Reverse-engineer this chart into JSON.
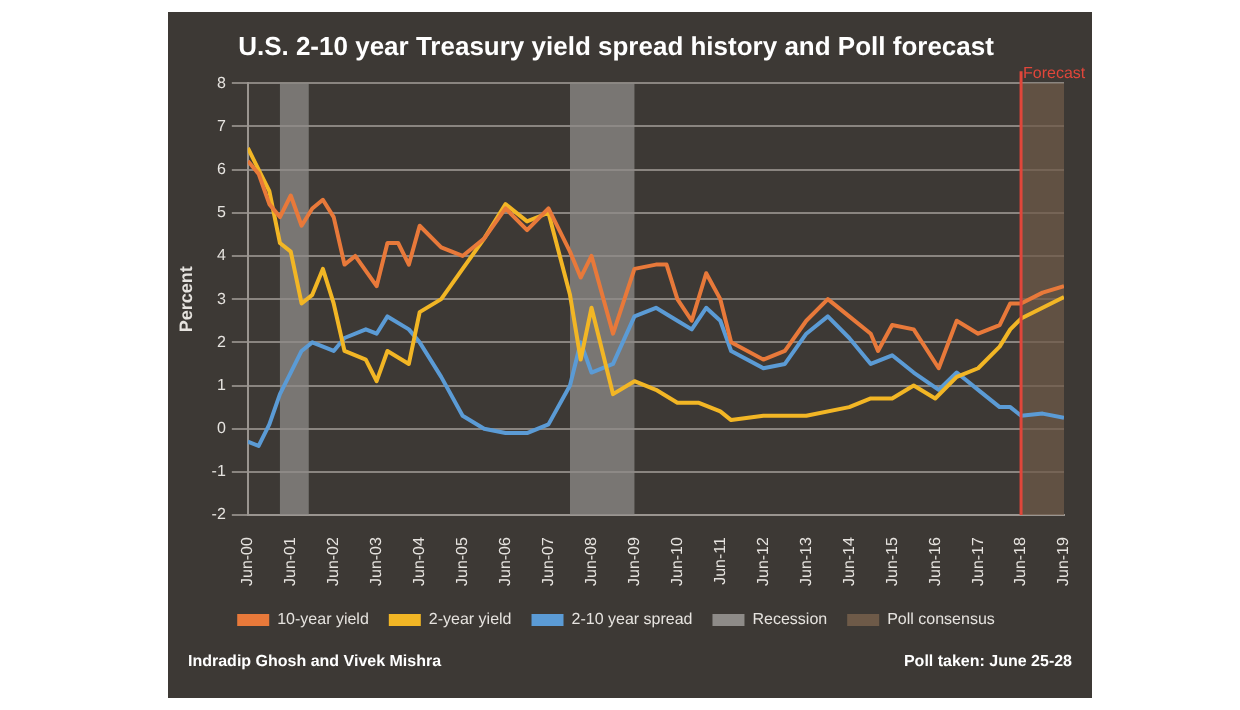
{
  "chart_data": {
    "type": "line",
    "title": "U.S. 2-10 year Treasury yield spread history and Poll forecast",
    "ylabel": "Percent",
    "xlim": [
      "2000-06",
      "2019-06"
    ],
    "xticks": [
      {
        "value": "2000-06",
        "label": "Jun-00"
      },
      {
        "value": "2001-06",
        "label": "Jun-01"
      },
      {
        "value": "2002-06",
        "label": "Jun-02"
      },
      {
        "value": "2003-06",
        "label": "Jun-03"
      },
      {
        "value": "2004-06",
        "label": "Jun-04"
      },
      {
        "value": "2005-06",
        "label": "Jun-05"
      },
      {
        "value": "2006-06",
        "label": "Jun-06"
      },
      {
        "value": "2007-06",
        "label": "Jun-07"
      },
      {
        "value": "2008-06",
        "label": "Jun-08"
      },
      {
        "value": "2009-06",
        "label": "Jun-09"
      },
      {
        "value": "2010-06",
        "label": "Jun-10"
      },
      {
        "value": "2011-06",
        "label": "Jun-11"
      },
      {
        "value": "2012-06",
        "label": "Jun-12"
      },
      {
        "value": "2013-06",
        "label": "Jun-13"
      },
      {
        "value": "2014-06",
        "label": "Jun-14"
      },
      {
        "value": "2015-06",
        "label": "Jun-15"
      },
      {
        "value": "2016-06",
        "label": "Jun-16"
      },
      {
        "value": "2017-06",
        "label": "Jun-17"
      },
      {
        "value": "2018-06",
        "label": "Jun-18"
      },
      {
        "value": "2019-06",
        "label": "Jun-19"
      }
    ],
    "ylim": [
      -2,
      8
    ],
    "yticks": [
      -2,
      -1,
      0,
      1,
      2,
      3,
      4,
      5,
      6,
      7,
      8
    ],
    "grid": "y",
    "legend": "bottom",
    "series": [
      {
        "name": "10-year yield",
        "color": "#e8793a",
        "x": [
          "2000-06",
          "2000-09",
          "2000-12",
          "2001-03",
          "2001-06",
          "2001-09",
          "2001-12",
          "2002-03",
          "2002-06",
          "2002-09",
          "2002-12",
          "2003-06",
          "2003-09",
          "2003-12",
          "2004-03",
          "2004-06",
          "2004-12",
          "2005-06",
          "2005-12",
          "2006-06",
          "2006-12",
          "2007-06",
          "2007-12",
          "2008-03",
          "2008-06",
          "2008-12",
          "2009-06",
          "2009-12",
          "2010-03",
          "2010-06",
          "2010-10",
          "2011-02",
          "2011-06",
          "2011-09",
          "2012-06",
          "2012-12",
          "2013-06",
          "2013-12",
          "2014-06",
          "2014-12",
          "2015-02",
          "2015-06",
          "2015-12",
          "2016-07",
          "2016-12",
          "2017-06",
          "2017-12",
          "2018-03",
          "2018-06",
          "2018-12",
          "2019-06"
        ],
        "values": [
          6.2,
          5.9,
          5.2,
          4.9,
          5.4,
          4.7,
          5.1,
          5.3,
          4.9,
          3.8,
          4.0,
          3.3,
          4.3,
          4.3,
          3.8,
          4.7,
          4.2,
          4.0,
          4.4,
          5.1,
          4.6,
          5.1,
          4.1,
          3.5,
          4.0,
          2.2,
          3.7,
          3.8,
          3.8,
          3.0,
          2.5,
          3.6,
          3.0,
          2.0,
          1.6,
          1.8,
          2.5,
          3.0,
          2.6,
          2.2,
          1.8,
          2.4,
          2.3,
          1.4,
          2.5,
          2.2,
          2.4,
          2.9,
          2.9,
          3.15,
          3.3
        ]
      },
      {
        "name": "2-year yield",
        "color": "#f2b625",
        "x": [
          "2000-06",
          "2000-12",
          "2001-03",
          "2001-06",
          "2001-09",
          "2001-12",
          "2002-03",
          "2002-06",
          "2002-09",
          "2003-03",
          "2003-06",
          "2003-09",
          "2004-03",
          "2004-06",
          "2004-12",
          "2005-06",
          "2005-12",
          "2006-06",
          "2006-12",
          "2007-06",
          "2007-12",
          "2008-03",
          "2008-06",
          "2008-12",
          "2009-06",
          "2009-12",
          "2010-06",
          "2010-12",
          "2011-06",
          "2011-09",
          "2012-06",
          "2013-06",
          "2014-06",
          "2014-12",
          "2015-06",
          "2015-12",
          "2016-06",
          "2016-12",
          "2017-06",
          "2017-12",
          "2018-03",
          "2018-06",
          "2018-12",
          "2019-06"
        ],
        "values": [
          6.5,
          5.5,
          4.3,
          4.1,
          2.9,
          3.1,
          3.7,
          2.9,
          1.8,
          1.6,
          1.1,
          1.8,
          1.5,
          2.7,
          3.0,
          3.7,
          4.4,
          5.2,
          4.8,
          5.0,
          3.1,
          1.6,
          2.8,
          0.8,
          1.1,
          0.9,
          0.6,
          0.6,
          0.4,
          0.2,
          0.3,
          0.3,
          0.5,
          0.7,
          0.7,
          1.0,
          0.7,
          1.2,
          1.4,
          1.9,
          2.3,
          2.55,
          2.8,
          3.05
        ]
      },
      {
        "name": "2-10 year spread",
        "color": "#5b9bd5",
        "x": [
          "2000-06",
          "2000-09",
          "2000-12",
          "2001-03",
          "2001-06",
          "2001-09",
          "2001-12",
          "2002-06",
          "2002-09",
          "2003-03",
          "2003-06",
          "2003-09",
          "2004-03",
          "2004-06",
          "2004-12",
          "2005-06",
          "2005-12",
          "2006-06",
          "2006-12",
          "2007-06",
          "2007-12",
          "2008-03",
          "2008-06",
          "2008-12",
          "2009-06",
          "2009-12",
          "2010-06",
          "2010-10",
          "2011-02",
          "2011-06",
          "2011-09",
          "2012-06",
          "2012-12",
          "2013-06",
          "2013-12",
          "2014-06",
          "2014-12",
          "2015-06",
          "2015-12",
          "2016-07",
          "2016-12",
          "2017-06",
          "2017-12",
          "2018-03",
          "2018-06",
          "2018-12",
          "2019-06"
        ],
        "values": [
          -0.3,
          -0.4,
          0.1,
          0.8,
          1.3,
          1.8,
          2.0,
          1.8,
          2.1,
          2.3,
          2.2,
          2.6,
          2.3,
          2.0,
          1.2,
          0.3,
          0.0,
          -0.1,
          -0.1,
          0.1,
          1.0,
          2.0,
          1.3,
          1.5,
          2.6,
          2.8,
          2.5,
          2.3,
          2.8,
          2.5,
          1.8,
          1.4,
          1.5,
          2.2,
          2.6,
          2.1,
          1.5,
          1.7,
          1.3,
          0.9,
          1.3,
          0.9,
          0.5,
          0.5,
          0.3,
          0.35,
          0.25
        ]
      }
    ],
    "bands": [
      {
        "axis": "x",
        "from": "2001-03",
        "to": "2001-11",
        "label": "Recession",
        "color": "#8e8b88"
      },
      {
        "axis": "x",
        "from": "2007-12",
        "to": "2009-06",
        "color": "#8e8b88"
      },
      {
        "axis": "x",
        "from": "2018-06",
        "to": "2019-06",
        "label": "Poll consensus",
        "color": "#6e5a48"
      }
    ],
    "ref_lines": [
      {
        "axis": "x",
        "value": "2018-06",
        "label": "Forecast",
        "color": "#e0463a"
      }
    ],
    "annotations": [
      "Indradip Ghosh and Vivek Mishra",
      "Poll taken: June 25-28"
    ]
  }
}
